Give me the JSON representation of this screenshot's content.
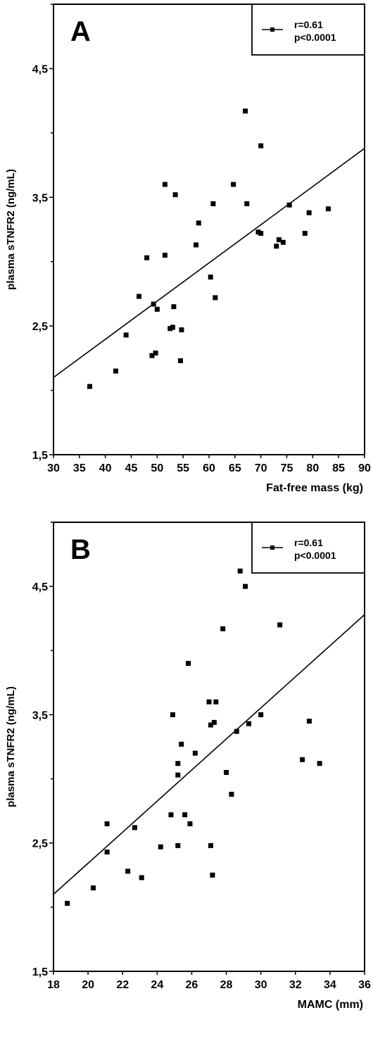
{
  "chart_data": [
    {
      "type": "scatter",
      "panel_label": "A",
      "xlabel": "Fat-free mass (kg)",
      "ylabel": "plasma sTNFR2 (ng/mL)",
      "xlim": [
        30,
        90
      ],
      "ylim": [
        1.5,
        5.0
      ],
      "x_ticks": [
        "30",
        "35",
        "40",
        "45",
        "50",
        "55",
        "60",
        "65",
        "70",
        "75",
        "80",
        "85",
        "90"
      ],
      "y_ticks": [
        "1,5",
        "2,5",
        "3,5",
        "4,5"
      ],
      "legend": {
        "line1": "r=0.61",
        "line2": "p<0.0001",
        "placement": "top-right"
      },
      "fit_line": {
        "x": [
          30,
          90
        ],
        "y": [
          2.1,
          3.88
        ]
      },
      "points": [
        [
          37,
          2.03
        ],
        [
          42,
          2.15
        ],
        [
          44,
          2.43
        ],
        [
          46.5,
          2.73
        ],
        [
          48,
          3.03
        ],
        [
          49,
          2.27
        ],
        [
          49.3,
          2.67
        ],
        [
          49.7,
          2.29
        ],
        [
          50,
          2.63
        ],
        [
          51.5,
          3.05
        ],
        [
          51.5,
          3.6
        ],
        [
          52.5,
          2.48
        ],
        [
          53,
          2.49
        ],
        [
          53.2,
          2.65
        ],
        [
          53.5,
          3.52
        ],
        [
          54.5,
          2.23
        ],
        [
          54.7,
          2.47
        ],
        [
          57.5,
          3.13
        ],
        [
          58,
          3.3
        ],
        [
          60.3,
          2.88
        ],
        [
          60.8,
          3.45
        ],
        [
          61.2,
          2.72
        ],
        [
          64.7,
          3.6
        ],
        [
          67,
          4.17
        ],
        [
          67.3,
          3.45
        ],
        [
          69.5,
          3.23
        ],
        [
          70,
          3.22
        ],
        [
          70,
          3.9
        ],
        [
          73,
          3.12
        ],
        [
          73.5,
          3.17
        ],
        [
          74.3,
          3.15
        ],
        [
          75.5,
          3.44
        ],
        [
          78.5,
          3.22
        ],
        [
          79.3,
          3.38
        ],
        [
          83,
          3.41
        ]
      ]
    },
    {
      "type": "scatter",
      "panel_label": "B",
      "xlabel": "MAMC (mm)",
      "ylabel": "plasma sTNFR2 (ng/mL)",
      "xlim": [
        18,
        36
      ],
      "ylim": [
        1.5,
        5.0
      ],
      "x_ticks": [
        "18",
        "20",
        "22",
        "24",
        "26",
        "28",
        "30",
        "32",
        "34",
        "36"
      ],
      "y_ticks": [
        "1,5",
        "2,5",
        "3,5",
        "4,5"
      ],
      "legend": {
        "line1": "r=0.61",
        "line2": "p<0.0001",
        "placement": "top-right"
      },
      "fit_line": {
        "x": [
          18,
          36
        ],
        "y": [
          2.1,
          4.28
        ]
      },
      "points": [
        [
          18.8,
          2.03
        ],
        [
          20.3,
          2.15
        ],
        [
          21.1,
          2.43
        ],
        [
          21.1,
          2.65
        ],
        [
          22.3,
          2.28
        ],
        [
          22.7,
          2.62
        ],
        [
          23.1,
          2.23
        ],
        [
          24.2,
          2.47
        ],
        [
          24.8,
          2.72
        ],
        [
          24.9,
          3.5
        ],
        [
          25.2,
          3.03
        ],
        [
          25.2,
          3.12
        ],
        [
          25.2,
          2.48
        ],
        [
          25.4,
          3.27
        ],
        [
          25.6,
          2.72
        ],
        [
          25.8,
          3.9
        ],
        [
          25.9,
          2.65
        ],
        [
          26.2,
          3.2
        ],
        [
          27,
          3.6
        ],
        [
          27.1,
          3.42
        ],
        [
          27.1,
          2.48
        ],
        [
          27.2,
          2.25
        ],
        [
          27.3,
          3.44
        ],
        [
          27.4,
          3.6
        ],
        [
          27.8,
          4.17
        ],
        [
          28,
          3.05
        ],
        [
          28.3,
          2.88
        ],
        [
          28.6,
          3.37
        ],
        [
          28.8,
          4.62
        ],
        [
          29.1,
          4.5
        ],
        [
          29.3,
          3.43
        ],
        [
          30,
          3.5
        ],
        [
          31.1,
          4.2
        ],
        [
          32.4,
          3.15
        ],
        [
          32.8,
          3.45
        ],
        [
          33.4,
          3.12
        ]
      ]
    }
  ]
}
